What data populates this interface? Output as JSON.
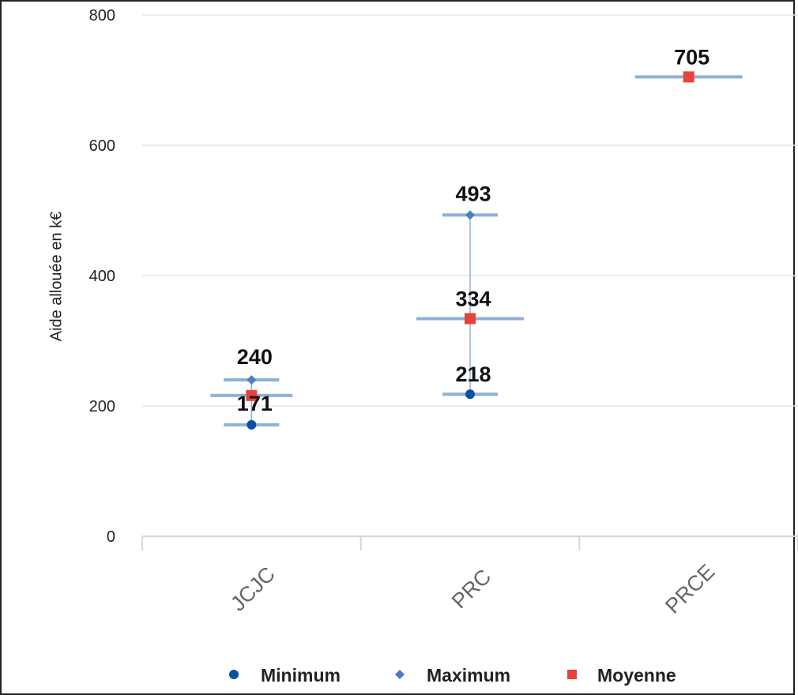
{
  "chart_data": {
    "type": "scatter",
    "ylabel": "Aide allouée en k€",
    "xlabel": "",
    "title": "",
    "ylim": [
      0,
      800
    ],
    "yticks": [
      0,
      200,
      400,
      600,
      800
    ],
    "categories": [
      "JCJC",
      "PRC",
      "PRCE"
    ],
    "grid": true,
    "legend_position": "bottom",
    "series": [
      {
        "name": "Minimum",
        "marker": "circle",
        "color": "#0d4fa3",
        "values": [
          171,
          218,
          null
        ]
      },
      {
        "name": "Maximum",
        "marker": "diamond",
        "color": "#4a7fc1",
        "values": [
          240,
          493,
          null
        ]
      },
      {
        "name": "Moyenne",
        "marker": "square",
        "color": "#e8433a",
        "values": [
          216,
          334,
          705
        ]
      }
    ],
    "data_labels": [
      {
        "category": "JCJC",
        "value": 240,
        "text": "240"
      },
      {
        "category": "JCJC",
        "value": 171,
        "text": "171"
      },
      {
        "category": "PRC",
        "value": 493,
        "text": "493"
      },
      {
        "category": "PRC",
        "value": 334,
        "text": "334"
      },
      {
        "category": "PRC",
        "value": 218,
        "text": "218"
      },
      {
        "category": "PRCE",
        "value": 705,
        "text": "705"
      }
    ]
  }
}
